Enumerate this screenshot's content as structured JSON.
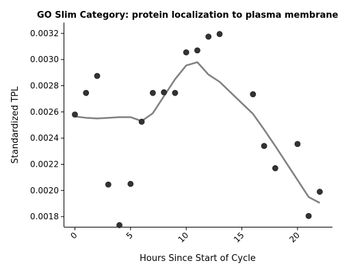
{
  "chart_data": {
    "type": "scatter",
    "title": "GO Slim Category: protein localization to plasma membrane",
    "xlabel": "Hours Since Start of Cycle",
    "ylabel": "Standardized TPL",
    "xlim": [
      -1,
      23
    ],
    "ylim": [
      0.00167,
      0.003275
    ],
    "x_ticks": [
      0,
      5,
      10,
      15,
      20
    ],
    "x_tick_labels": [
      "0",
      "5",
      "10",
      "15",
      "20"
    ],
    "y_ticks": [
      0.0018,
      0.002,
      0.0022,
      0.0024,
      0.0026,
      0.0028,
      0.003,
      0.0032
    ],
    "y_tick_labels": [
      "0.0018",
      "0.0020",
      "0.0022",
      "0.0024",
      "0.0026",
      "0.0028",
      "0.0030",
      "0.0032"
    ],
    "grid": false,
    "point_color": "#333333",
    "line_color": "#808080",
    "series": [
      {
        "kind": "points",
        "x": [
          0,
          1,
          2,
          3,
          4,
          5,
          6,
          7,
          8,
          9,
          10,
          11,
          12,
          13,
          16,
          17,
          18,
          20,
          21,
          22
        ],
        "y": [
          0.00258,
          0.002745,
          0.002875,
          0.002045,
          0.001735,
          0.00205,
          0.002525,
          0.002745,
          0.00275,
          0.002745,
          0.003055,
          0.00307,
          0.003175,
          0.003195,
          0.002735,
          0.00234,
          0.00217,
          0.002355,
          0.001805,
          0.00199
        ]
      },
      {
        "kind": "trend-line",
        "x": [
          0,
          1,
          2,
          3,
          4,
          5,
          6,
          7,
          8,
          9,
          10,
          11,
          12,
          13,
          16,
          17,
          18,
          20,
          21,
          22
        ],
        "y": [
          0.002565,
          0.002555,
          0.00255,
          0.002555,
          0.00256,
          0.00256,
          0.00253,
          0.00259,
          0.00272,
          0.00285,
          0.002955,
          0.00298,
          0.002885,
          0.00283,
          0.002585,
          0.002465,
          0.00234,
          0.00208,
          0.00195,
          0.001905
        ]
      }
    ]
  }
}
